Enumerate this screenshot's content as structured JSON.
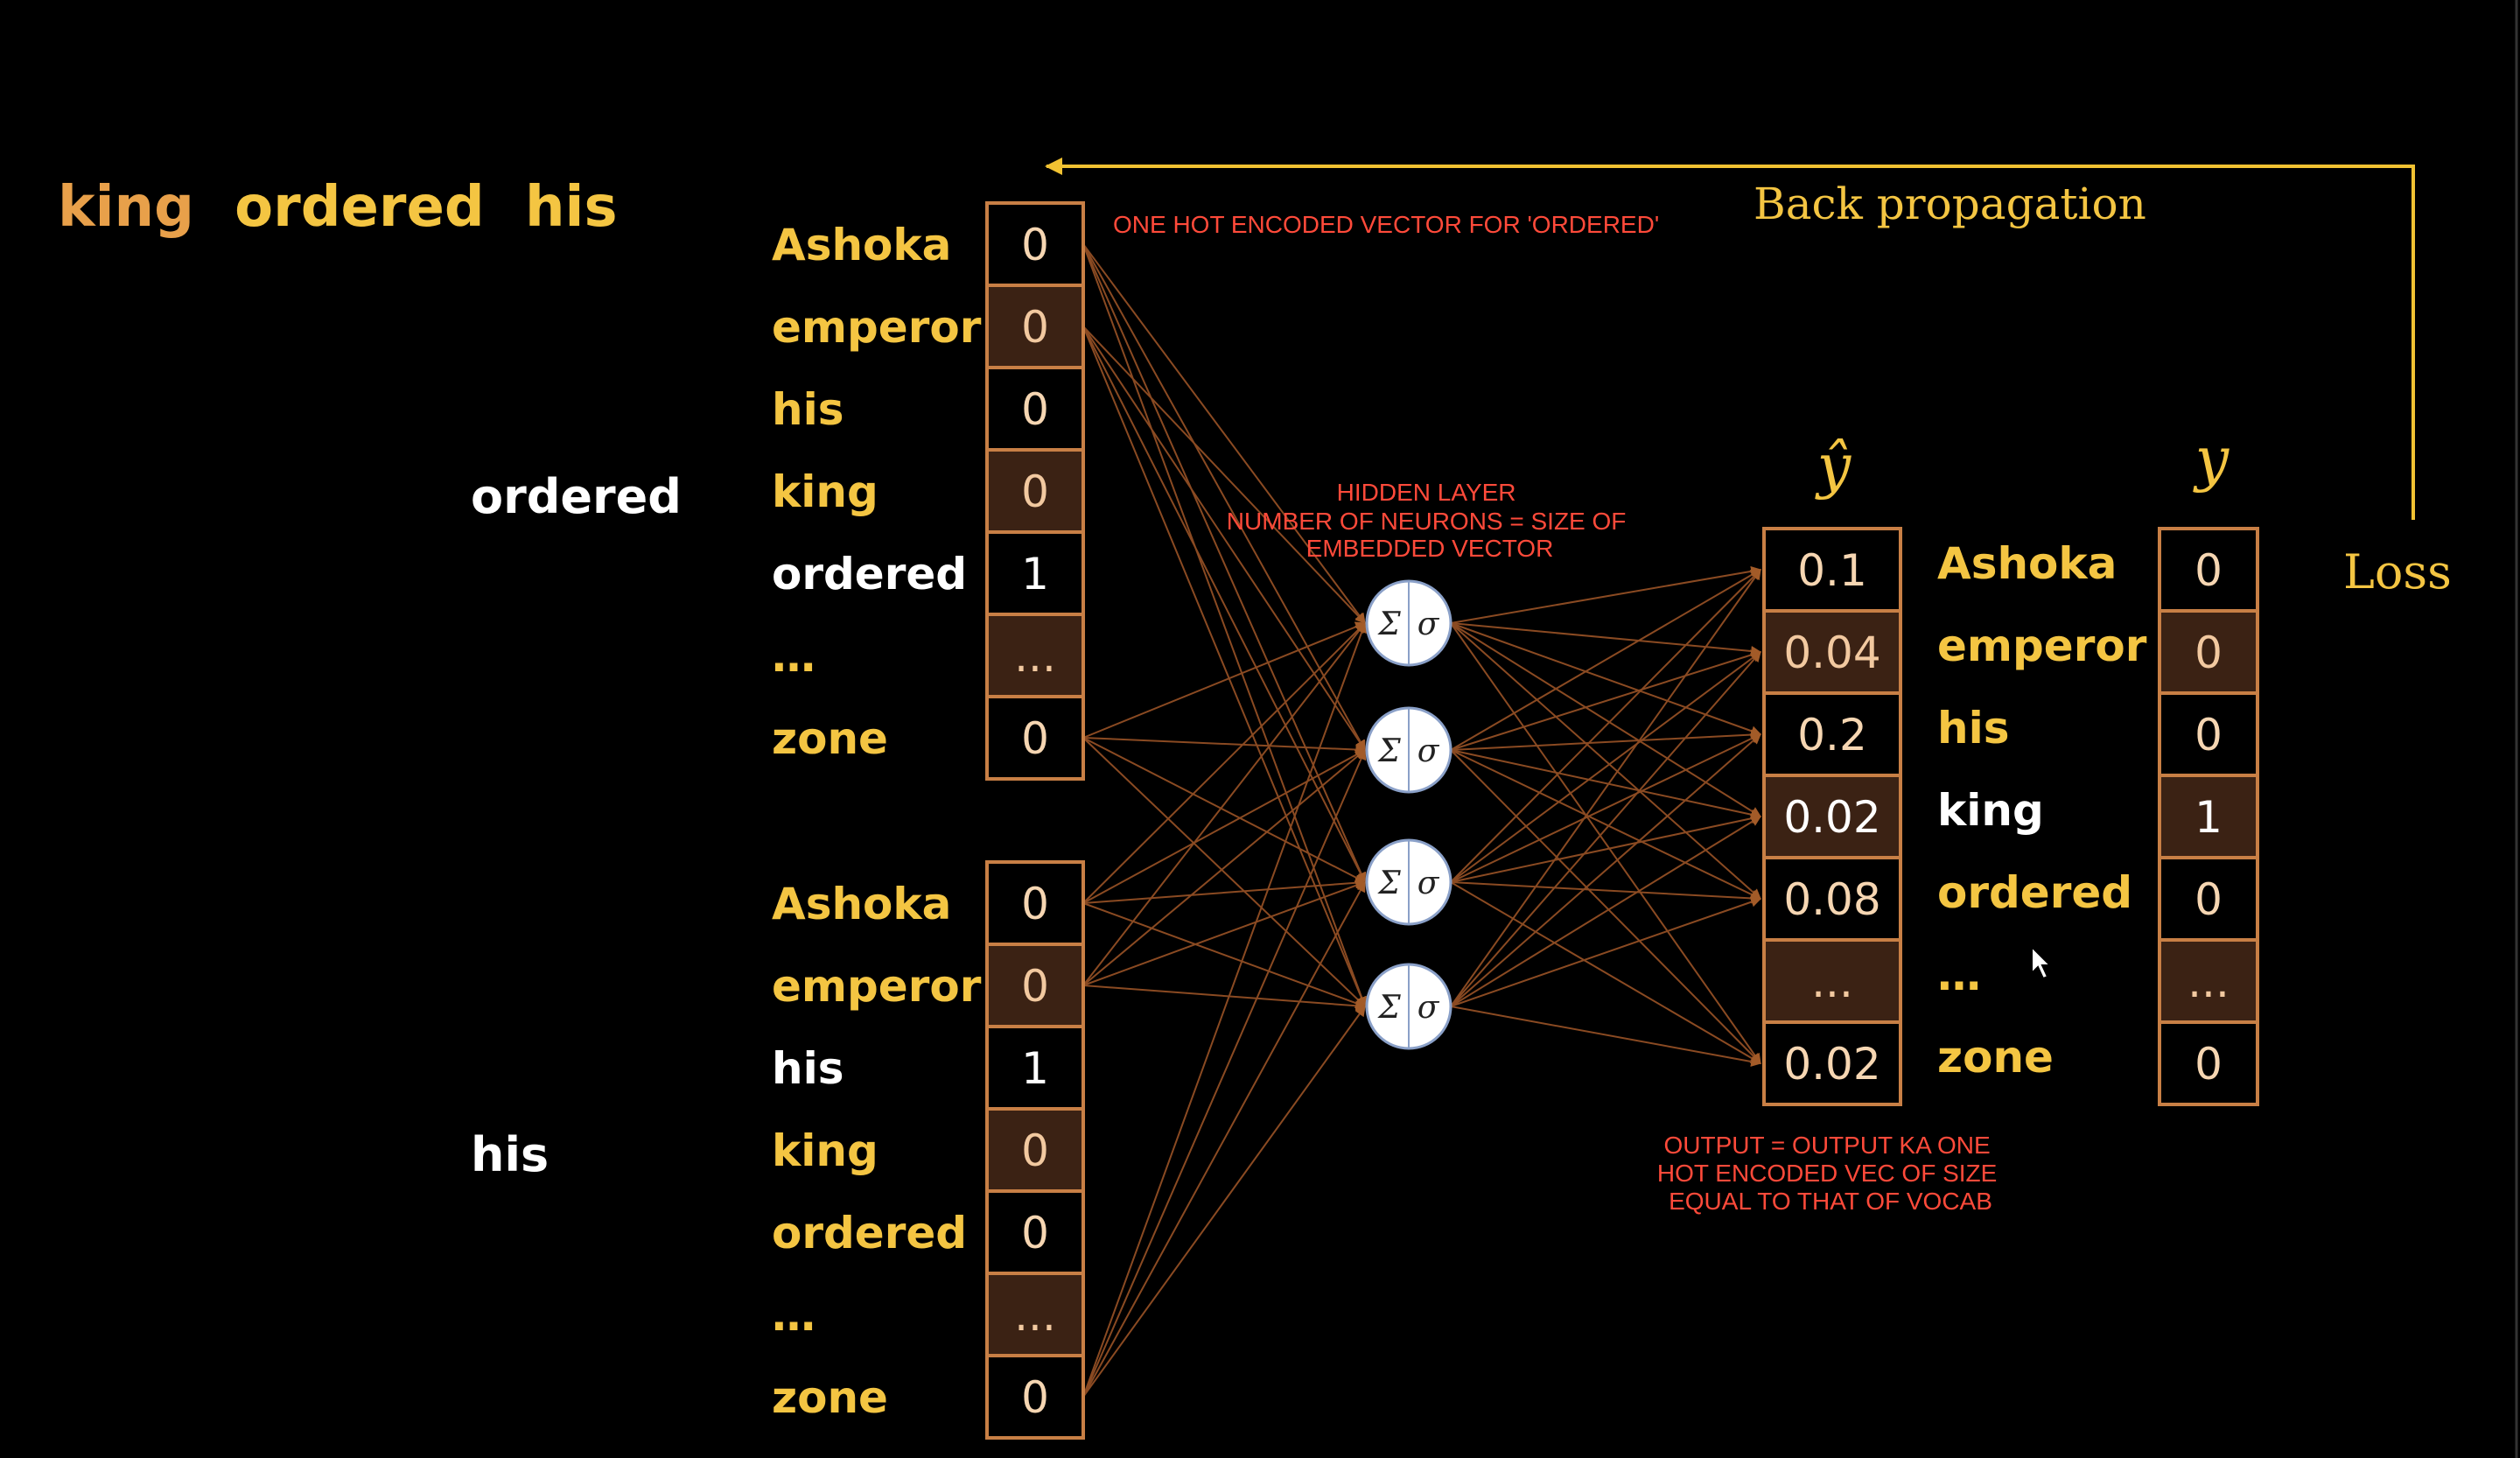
{
  "colors": {
    "background": "#000000",
    "yellow": "#f4c542",
    "white": "#ffffff",
    "orange_text": "#e8a04a",
    "cell_stroke": "#c87f45",
    "cell_dark": "#3b2214",
    "connection": "#8a4a22",
    "arrow": "#a35b28",
    "note_red": "#ff4a3a",
    "line_yellow": "#f1c232"
  },
  "title": {
    "word1": "king",
    "word2": "ordered",
    "word3": "his"
  },
  "inputs": [
    {
      "context_word": "ordered",
      "rows": [
        {
          "label": "Ashoka",
          "value": "0",
          "active": false
        },
        {
          "label": "emperor",
          "value": "0",
          "active": false
        },
        {
          "label": "his",
          "value": "0",
          "active": false
        },
        {
          "label": "king",
          "value": "0",
          "active": false
        },
        {
          "label": "ordered",
          "value": "1",
          "active": true
        },
        {
          "label": "…",
          "value": "...",
          "active": false
        },
        {
          "label": "zone",
          "value": "0",
          "active": false
        }
      ]
    },
    {
      "context_word": "his",
      "rows": [
        {
          "label": "Ashoka",
          "value": "0",
          "active": false
        },
        {
          "label": "emperor",
          "value": "0",
          "active": false
        },
        {
          "label": "his",
          "value": "1",
          "active": true
        },
        {
          "label": "king",
          "value": "0",
          "active": false
        },
        {
          "label": "ordered",
          "value": "0",
          "active": false
        },
        {
          "label": "…",
          "value": "...",
          "active": false
        },
        {
          "label": "zone",
          "value": "0",
          "active": false
        }
      ]
    }
  ],
  "notes": {
    "one_hot": "ONE HOT ENCODED VECTOR FOR 'ORDERED'",
    "hidden_layer": [
      "HIDDEN LAYER",
      "NUMBER OF NEURONS = SIZE OF",
      "EMBEDDED VECTOR"
    ],
    "output": [
      "OUTPUT = OUTPUT KA ONE",
      "HOT ENCODED VEC OF SIZE",
      "EQUAL TO THAT OF VOCAB"
    ]
  },
  "neuron": {
    "sum_symbol": "Σ",
    "activation_symbol": "σ",
    "count": 4
  },
  "output": {
    "y_hat_label": "ŷ",
    "y_label": "y",
    "rows": [
      {
        "label": "Ashoka",
        "y_hat": "0.1",
        "y": "0",
        "target": false
      },
      {
        "label": "emperor",
        "y_hat": "0.04",
        "y": "0",
        "target": false
      },
      {
        "label": "his",
        "y_hat": "0.2",
        "y": "0",
        "target": false
      },
      {
        "label": "king",
        "y_hat": "0.02",
        "y": "1",
        "target": true
      },
      {
        "label": "ordered",
        "y_hat": "0.08",
        "y": "0",
        "target": false
      },
      {
        "label": "…",
        "y_hat": "...",
        "y": "...",
        "target": false
      },
      {
        "label": "zone",
        "y_hat": "0.02",
        "y": "0",
        "target": false
      }
    ]
  },
  "loss_label": "Loss",
  "backprop_label": "Back propagation"
}
